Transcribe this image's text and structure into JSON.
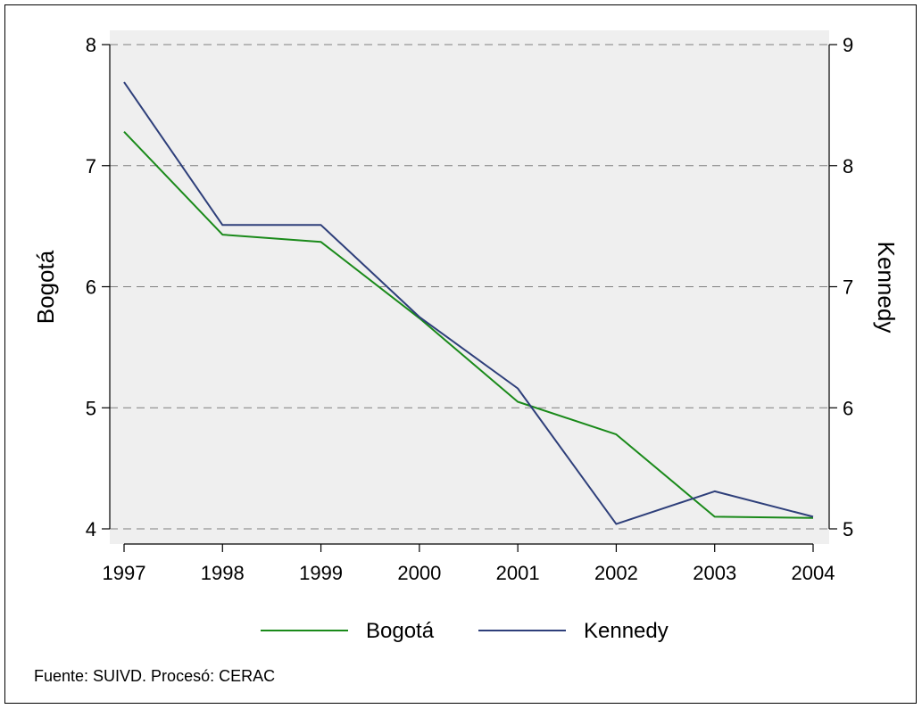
{
  "chart_data": {
    "type": "line",
    "x": [
      1997,
      1998,
      1999,
      2000,
      2001,
      2002,
      2003,
      2004
    ],
    "x_tick_labels": [
      "1997",
      "1998",
      "1999",
      "2000",
      "2001",
      "2002",
      "2003",
      "2004"
    ],
    "series": [
      {
        "name": "Bogotá",
        "axis": "left",
        "color": "#1a8a1a",
        "values": [
          7.28,
          6.43,
          6.37,
          5.74,
          5.05,
          4.78,
          4.1,
          4.09
        ]
      },
      {
        "name": "Kennedy",
        "axis": "right",
        "color": "#2e3f7a",
        "values": [
          8.69,
          7.51,
          7.51,
          6.75,
          6.16,
          5.04,
          5.31,
          5.1
        ]
      }
    ],
    "ylabel_left": "Bogotá",
    "ylabel_right": "Kennedy",
    "ylim_left": [
      4,
      8
    ],
    "ylim_right": [
      5,
      9
    ],
    "yticks_left": [
      "4",
      "5",
      "6",
      "7",
      "8"
    ],
    "yticks_right": [
      "5",
      "6",
      "7",
      "8",
      "9"
    ],
    "grid": "horizontal dashed",
    "legend_position": "bottom",
    "legend_entries": [
      "Bogotá",
      "Kennedy"
    ],
    "note": "Fuente: SUIVD. Procesó: CERAC"
  }
}
